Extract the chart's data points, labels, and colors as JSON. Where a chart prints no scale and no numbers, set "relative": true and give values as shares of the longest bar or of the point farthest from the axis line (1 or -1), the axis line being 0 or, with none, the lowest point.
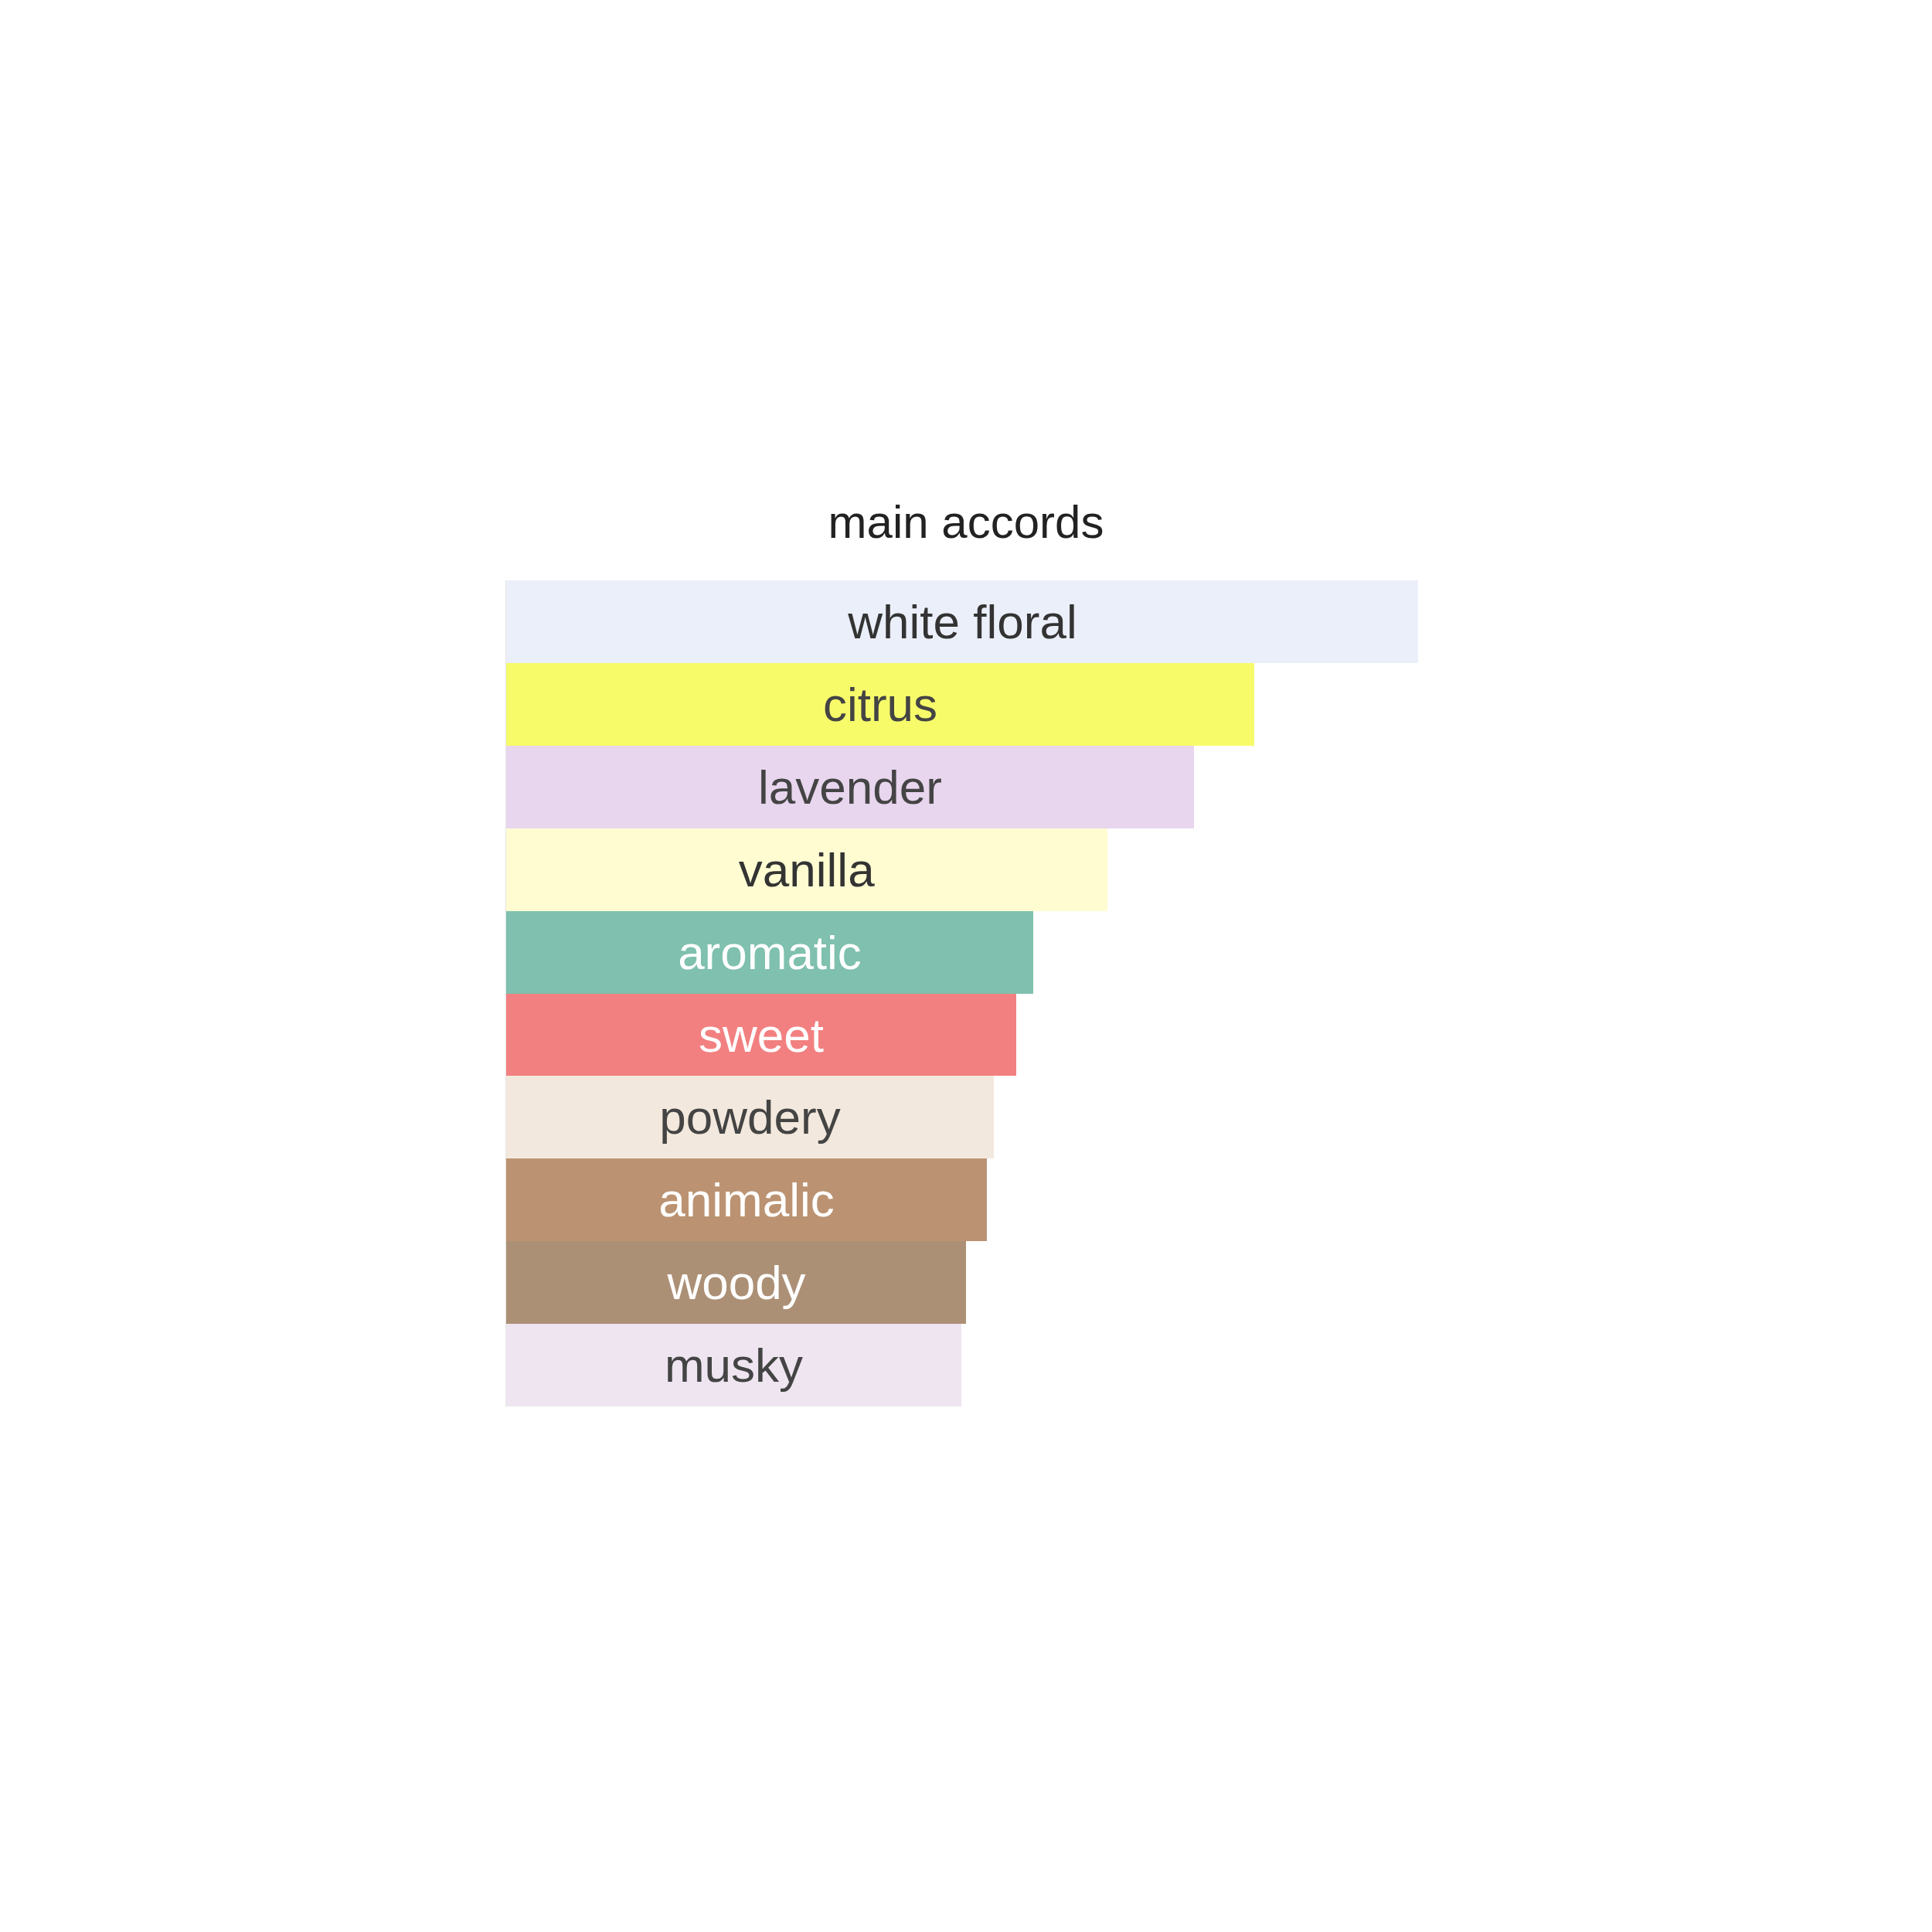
{
  "chart_data": {
    "type": "bar",
    "orientation": "horizontal",
    "relative": true,
    "title": "main accords",
    "categories": [
      "white floral",
      "citrus",
      "lavender",
      "vanilla",
      "aromatic",
      "sweet",
      "powdery",
      "animalic",
      "woody",
      "musky"
    ],
    "values": [
      1,
      0.82,
      0.754,
      0.659,
      0.578,
      0.559,
      0.535,
      0.527,
      0.504,
      0.499
    ],
    "colors": [
      "#ebeffa",
      "#f7fb6a",
      "#e8d5ee",
      "#fffcd2",
      "#7fc0ae",
      "#f28080",
      "#f3e8dd",
      "#bb9372",
      "#ac9076",
      "#efe5f1"
    ]
  }
}
